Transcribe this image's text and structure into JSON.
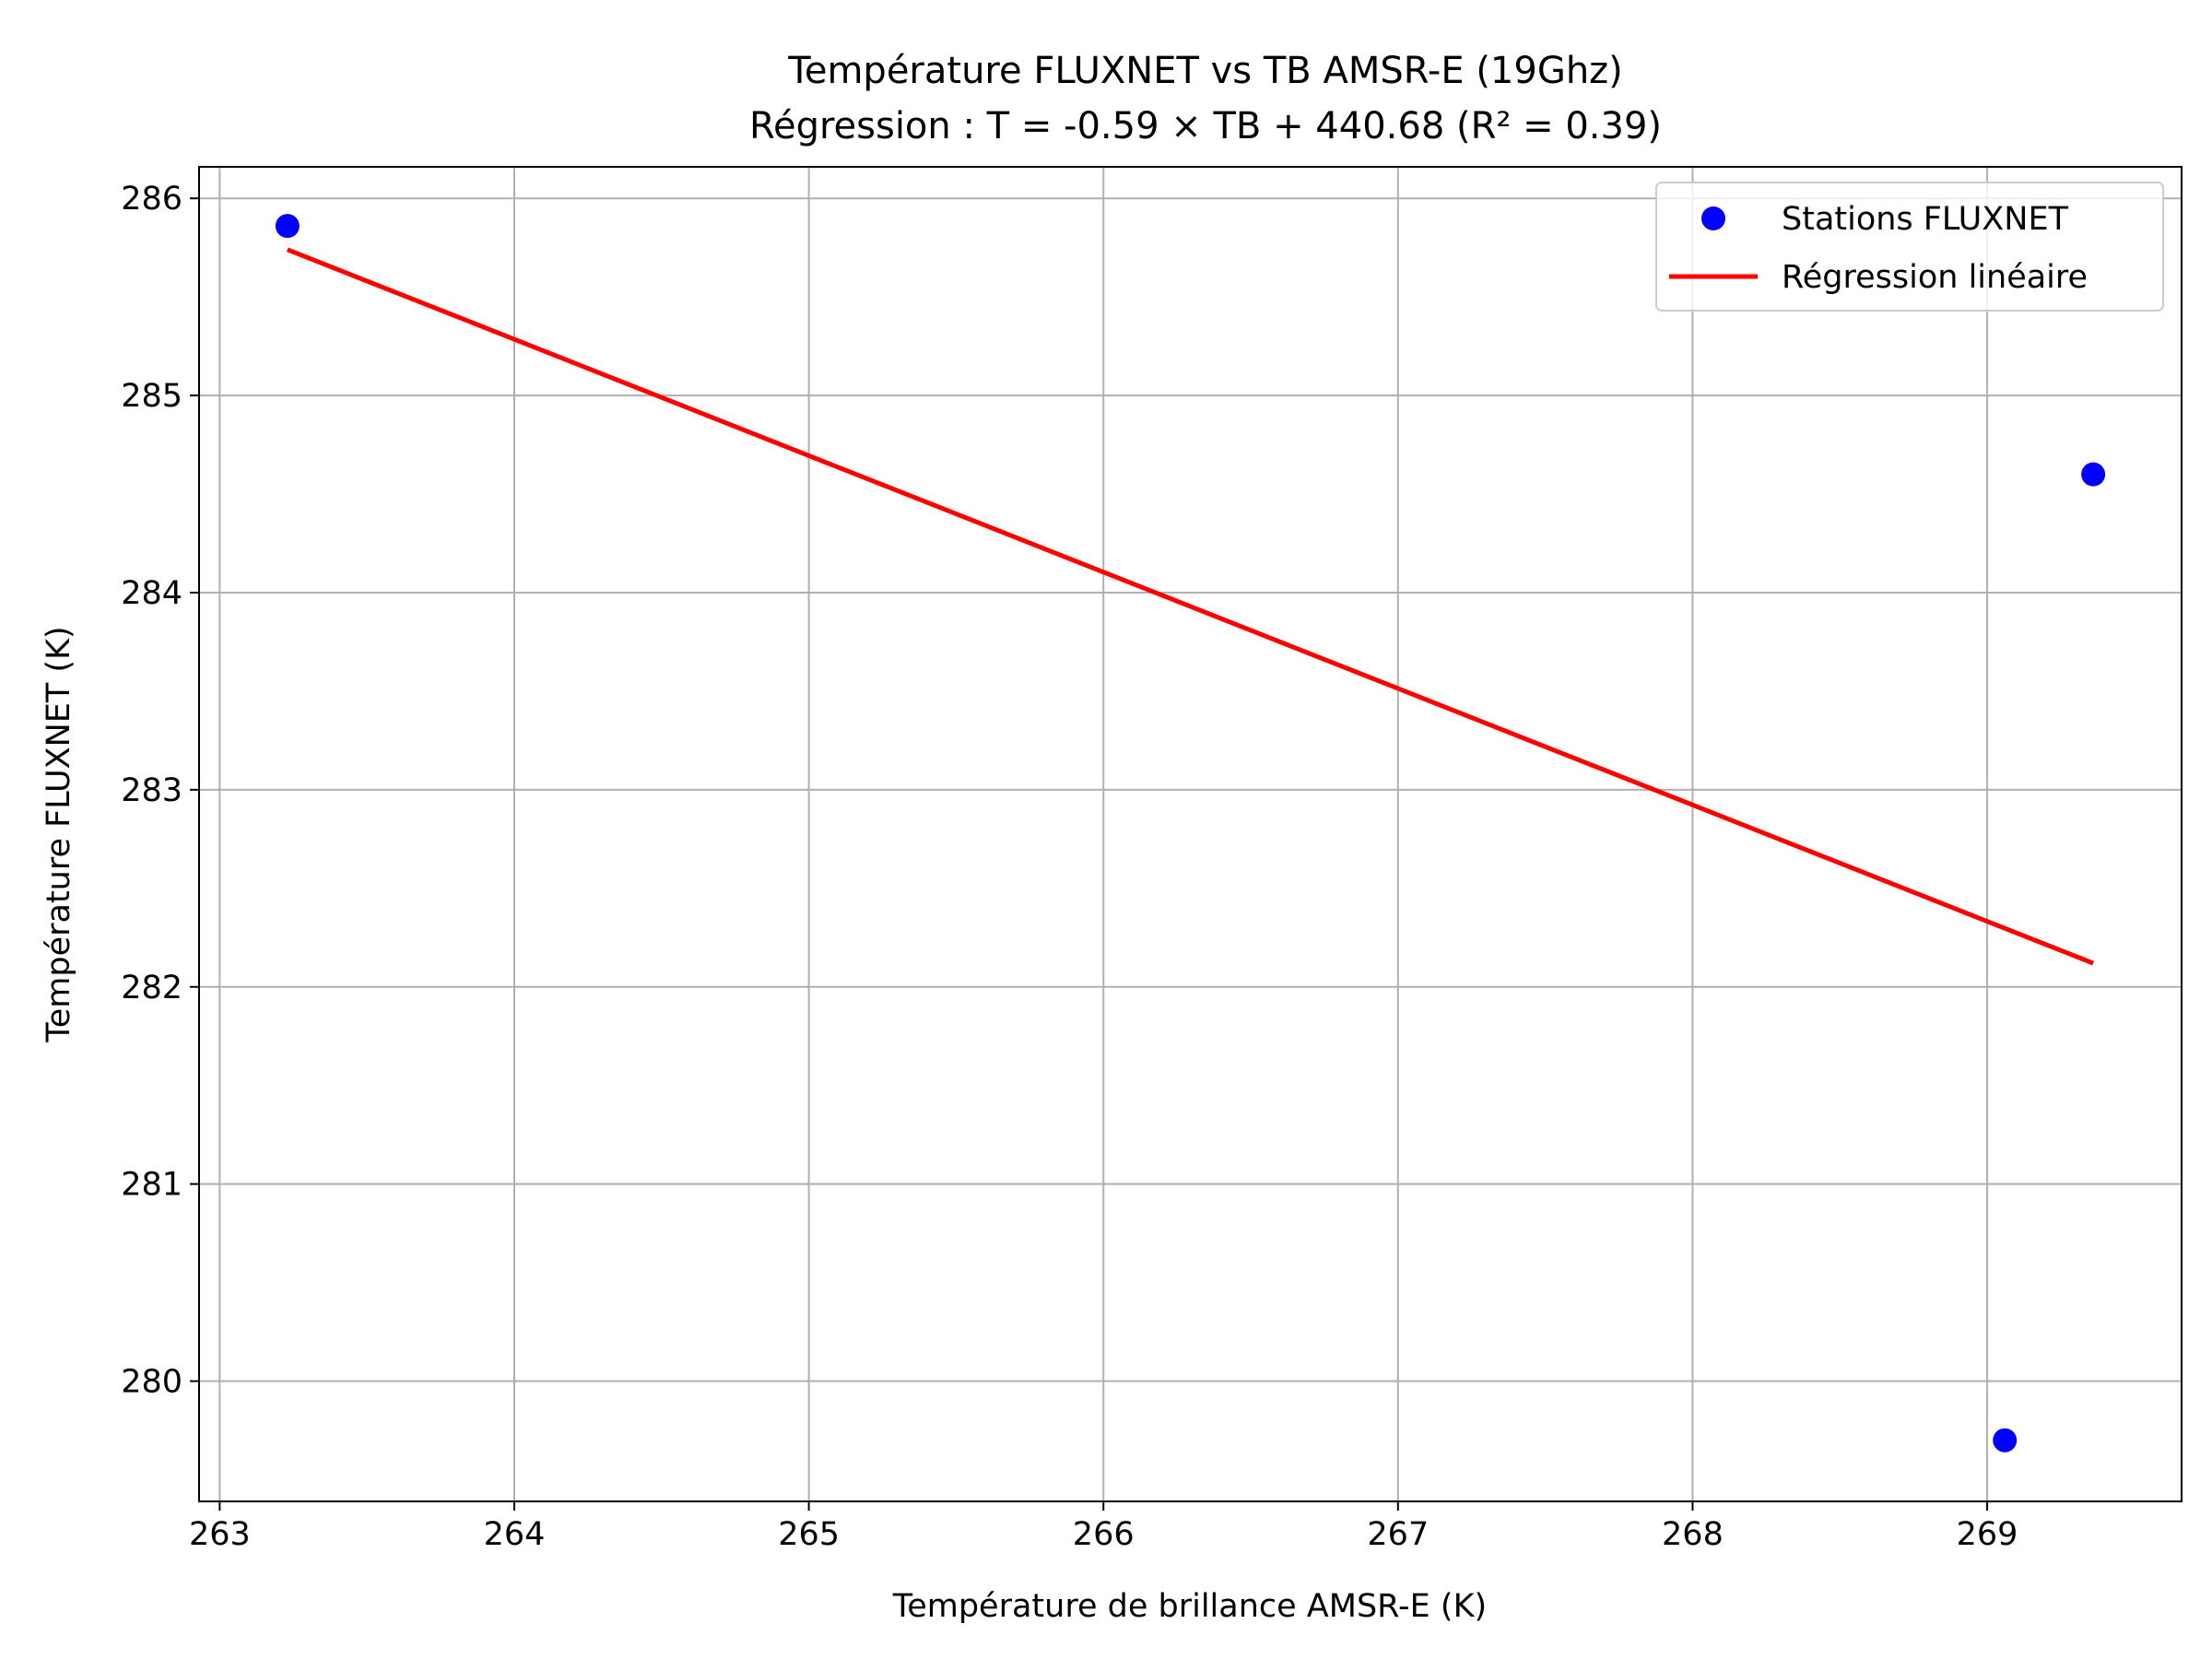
{
  "chart_data": {
    "type": "scatter",
    "title": "Température FLUXNET vs TB AMSR-E (19Ghz)",
    "subtitle": "Régression : T = -0.59 × TB + 440.68 (R² = 0.39)",
    "xlabel": "Température de brillance AMSR-E (K)",
    "ylabel": "Température FLUXNET (K)",
    "xlim": [
      262.93,
      269.66
    ],
    "ylim": [
      279.39,
      286.16
    ],
    "xticks": [
      263,
      264,
      265,
      266,
      267,
      268,
      269
    ],
    "yticks": [
      280,
      281,
      282,
      283,
      284,
      285,
      286
    ],
    "grid": true,
    "legend_position": "top-right",
    "series": [
      {
        "name": "Stations FLUXNET",
        "kind": "scatter",
        "color": "#0000ff",
        "points": [
          {
            "x": 263.23,
            "y": 285.86
          },
          {
            "x": 269.36,
            "y": 284.6
          },
          {
            "x": 269.06,
            "y": 279.7
          }
        ]
      },
      {
        "name": "Régression linéaire",
        "kind": "line",
        "color": "#ff0000",
        "points": [
          {
            "x": 263.23,
            "y": 285.74
          },
          {
            "x": 269.36,
            "y": 282.12
          }
        ]
      }
    ]
  }
}
